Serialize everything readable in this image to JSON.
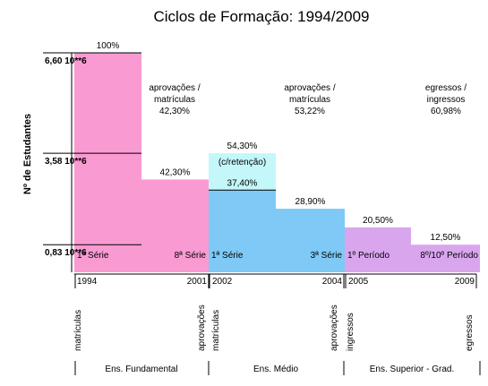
{
  "chart_data": {
    "type": "bar",
    "title": "Ciclos de Formação: 1994/2009",
    "ylabel": "Nº de Estudantes",
    "yticks": [
      "6,60 10**6",
      "3,58 10**6",
      "0,83 10**6"
    ],
    "ytick_values": [
      6.6,
      3.58,
      0.83
    ],
    "ylim": [
      0,
      6.6
    ],
    "grid": false,
    "colors": {
      "fundamental": "#f99ad2",
      "medio": "#7ec9f6",
      "retencao": "#c4f7f9",
      "superior": "#d9a6ee",
      "title": "#7a2a6a"
    },
    "bars": [
      {
        "label": "100%",
        "value": 6.6,
        "color_key": "fundamental"
      },
      {
        "label": "42,30%",
        "value": 2.79,
        "color_key": "fundamental"
      },
      {
        "label": "37,40%",
        "value": 2.47,
        "color_key": "medio"
      },
      {
        "label": "28,90%",
        "value": 1.91,
        "color_key": "medio"
      },
      {
        "label": "20,50%",
        "value": 1.35,
        "color_key": "superior"
      },
      {
        "label": "12,50%",
        "value": 0.83,
        "color_key": "superior"
      }
    ],
    "retention": {
      "line1": "54,30%",
      "line2": "(c/retenção)",
      "value": 3.58,
      "base": 2.47
    },
    "ratios": [
      {
        "line1": "aprovações /",
        "line2": "matrículas",
        "line3": "42,30%"
      },
      {
        "line1": "aprovações /",
        "line2": "matrículas",
        "line3": "53,22%"
      },
      {
        "line1": "egressos /",
        "line2": "ingressos",
        "line3": "60,98%"
      }
    ],
    "bar_inner_labels": [
      "1ª Série",
      "8ª Série",
      "1ª Série",
      "3ª Série",
      "1º Período",
      "8º/10º Período"
    ],
    "years": [
      "1994",
      "2001",
      "2002",
      "2004",
      "2005",
      "2009"
    ],
    "vertical_labels": [
      "matrículas",
      "aprovações",
      "matrículas",
      "aprovações",
      "ingressos",
      "egressos"
    ],
    "groups": [
      "Ens. Fundamental",
      "Ens. Médio",
      "Ens. Superior - Grad."
    ]
  }
}
